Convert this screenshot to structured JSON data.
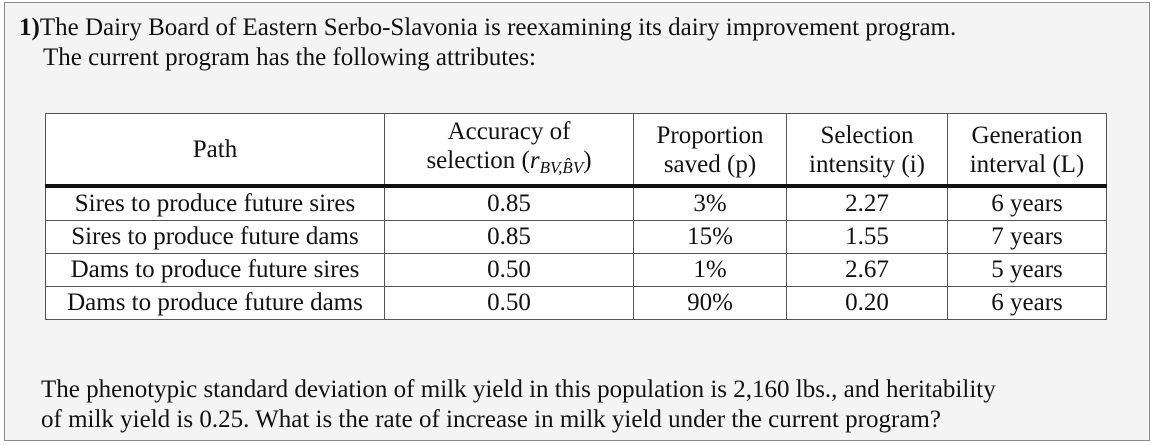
{
  "problem": {
    "number": "1)",
    "intro_line1": "The Dairy Board of Eastern Serbo-Slavonia is reexamining its dairy improvement program.",
    "intro_line2": "The current program has the following attributes:"
  },
  "table": {
    "headers": {
      "path": "Path",
      "accuracy_line1": "Accuracy of",
      "accuracy_line2_prefix": "selection (",
      "accuracy_symbol": "r",
      "accuracy_subscript": "BV,B̂V",
      "accuracy_line2_suffix": ")",
      "proportion_line1": "Proportion",
      "proportion_line2": "saved (p)",
      "intensity_line1": "Selection",
      "intensity_line2": "intensity (i)",
      "generation_line1": "Generation",
      "generation_line2": "interval (L)"
    },
    "rows": [
      {
        "path": "Sires to produce future sires",
        "accuracy": "0.85",
        "proportion": "3%",
        "intensity": "2.27",
        "interval": "6 years"
      },
      {
        "path": "Sires to produce future dams",
        "accuracy": "0.85",
        "proportion": "15%",
        "intensity": "1.55",
        "interval": "7 years"
      },
      {
        "path": "Dams to produce future sires",
        "accuracy": "0.50",
        "proportion": "1%",
        "intensity": "2.67",
        "interval": "5 years"
      },
      {
        "path": "Dams to produce future dams",
        "accuracy": "0.50",
        "proportion": "90%",
        "intensity": "0.20",
        "interval": "6 years"
      }
    ]
  },
  "question": {
    "line1": "The phenotypic standard deviation of milk yield in this population is 2,160 lbs., and heritability",
    "line2": "of milk yield is 0.25. What is the rate of increase in milk yield under the current program?"
  }
}
